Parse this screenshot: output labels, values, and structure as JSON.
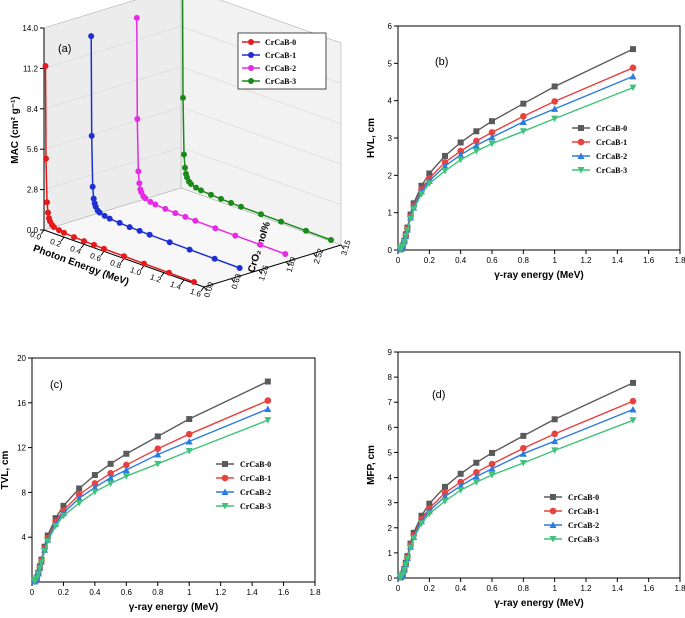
{
  "colors": {
    "CrCaB-0": "#e41a1c",
    "CrCaB-1": "#1f2fd1",
    "CrCaB-2": "#e62ae6",
    "CrCaB-3": "#1a8a1a",
    "b0": "#5a5a5a",
    "b1": "#e8423f",
    "b2": "#2c7be0",
    "b3": "#3fc27a"
  },
  "chart_data": [
    {
      "panel": "(a)",
      "type": "line",
      "title": "",
      "zlabel": "MAC (cm² g⁻¹)",
      "xlabel": "Photon Energy (MeV)",
      "ylabel": "CrO₂ mol%",
      "zticks": [
        "0.0",
        "2.8",
        "5.6",
        "8.4",
        "11.2",
        "14.0"
      ],
      "xticks": [
        "0.0",
        "0.2",
        "0.4",
        "0.6",
        "0.8",
        "1.0",
        "1.2",
        "1.4",
        "1.6"
      ],
      "yticks": [
        "0.00",
        "0.63",
        "1.26",
        "1.89",
        "2.52",
        "3.15"
      ],
      "zlim": [
        0,
        14
      ],
      "energy": [
        0.015,
        0.02,
        0.03,
        0.04,
        0.05,
        0.06,
        0.08,
        0.1,
        0.15,
        0.2,
        0.3,
        0.4,
        0.5,
        0.6,
        0.8,
        1.0,
        1.25,
        1.5
      ],
      "series": [
        {
          "name": "CrCaB-0",
          "mol": 0.0,
          "values": [
            11.4,
            5.0,
            2.0,
            1.3,
            0.95,
            0.75,
            0.55,
            0.45,
            0.36,
            0.3,
            0.25,
            0.22,
            0.2,
            0.18,
            0.16,
            0.14,
            0.12,
            0.1
          ]
        },
        {
          "name": "CrCaB-1",
          "mol": 1.05,
          "values": [
            12.5,
            5.6,
            2.1,
            1.3,
            1.0,
            0.8,
            0.58,
            0.48,
            0.38,
            0.31,
            0.26,
            0.22,
            0.2,
            0.18,
            0.16,
            0.14,
            0.12,
            0.1
          ]
        },
        {
          "name": "CrCaB-2",
          "mol": 2.1,
          "values": [
            12.8,
            5.8,
            2.2,
            1.4,
            1.0,
            0.82,
            0.6,
            0.5,
            0.38,
            0.32,
            0.26,
            0.22,
            0.2,
            0.18,
            0.16,
            0.14,
            0.12,
            0.1
          ]
        },
        {
          "name": "CrCaB-3",
          "mol": 3.15,
          "values": [
            14.0,
            6.3,
            2.4,
            1.5,
            1.1,
            0.88,
            0.64,
            0.52,
            0.4,
            0.33,
            0.27,
            0.23,
            0.2,
            0.18,
            0.16,
            0.14,
            0.12,
            0.1
          ]
        }
      ],
      "legend": [
        "CrCaB-0",
        "CrCaB-1",
        "CrCaB-2",
        "CrCaB-3"
      ]
    },
    {
      "panel": "(b)",
      "type": "line",
      "xlabel": "γ-ray energy (MeV)",
      "ylabel": "HVL, cm",
      "xlim": [
        0,
        1.8
      ],
      "ylim": [
        0,
        6
      ],
      "xticks": [
        0,
        0.2,
        0.4,
        0.6,
        0.8,
        1.0,
        1.2,
        1.4,
        1.6,
        1.8
      ],
      "yticks": [
        0,
        1,
        2,
        3,
        4,
        5,
        6
      ],
      "x": [
        0.015,
        0.02,
        0.03,
        0.04,
        0.05,
        0.06,
        0.08,
        0.1,
        0.15,
        0.2,
        0.3,
        0.4,
        0.5,
        0.6,
        0.8,
        1.0,
        1.5
      ],
      "series": [
        {
          "name": "CrCaB-0",
          "values": [
            0.02,
            0.04,
            0.12,
            0.25,
            0.42,
            0.6,
            0.95,
            1.25,
            1.72,
            2.05,
            2.52,
            2.88,
            3.18,
            3.45,
            3.92,
            4.38,
            5.38
          ]
        },
        {
          "name": "CrCaB-1",
          "values": [
            0.02,
            0.04,
            0.11,
            0.24,
            0.4,
            0.57,
            0.9,
            1.18,
            1.62,
            1.92,
            2.35,
            2.65,
            2.92,
            3.15,
            3.58,
            3.98,
            4.88
          ]
        },
        {
          "name": "CrCaB-2",
          "values": [
            0.02,
            0.04,
            0.11,
            0.23,
            0.38,
            0.55,
            0.87,
            1.14,
            1.57,
            1.85,
            2.25,
            2.55,
            2.8,
            3.02,
            3.43,
            3.78,
            4.65
          ]
        },
        {
          "name": "CrCaB-3",
          "values": [
            0.02,
            0.04,
            0.1,
            0.22,
            0.37,
            0.53,
            0.84,
            1.1,
            1.5,
            1.78,
            2.12,
            2.42,
            2.65,
            2.85,
            3.18,
            3.52,
            4.35
          ]
        }
      ]
    },
    {
      "panel": "(c)",
      "type": "line",
      "xlabel": "γ-ray energy (MeV)",
      "ylabel": "TVL, cm",
      "xlim": [
        0,
        1.8
      ],
      "ylim": [
        0,
        20
      ],
      "xticks": [
        0,
        0.2,
        0.4,
        0.6,
        0.8,
        1.0,
        1.2,
        1.4,
        1.6,
        1.8
      ],
      "yticks": [
        4,
        8,
        12,
        16,
        20
      ],
      "x": [
        0.015,
        0.02,
        0.03,
        0.04,
        0.05,
        0.06,
        0.08,
        0.1,
        0.15,
        0.2,
        0.3,
        0.4,
        0.5,
        0.6,
        0.8,
        1.0,
        1.5
      ],
      "series": [
        {
          "name": "CrCaB-0",
          "values": [
            0.06,
            0.14,
            0.4,
            0.82,
            1.4,
            2.0,
            3.15,
            4.15,
            5.7,
            6.8,
            8.35,
            9.55,
            10.55,
            11.45,
            13.0,
            14.55,
            17.9
          ]
        },
        {
          "name": "CrCaB-1",
          "values": [
            0.06,
            0.13,
            0.37,
            0.78,
            1.33,
            1.9,
            3.0,
            3.92,
            5.4,
            6.38,
            7.8,
            8.8,
            9.7,
            10.45,
            11.9,
            13.2,
            16.2
          ]
        },
        {
          "name": "CrCaB-2",
          "values": [
            0.06,
            0.13,
            0.36,
            0.76,
            1.27,
            1.83,
            2.88,
            3.78,
            5.2,
            6.15,
            7.48,
            8.45,
            9.3,
            10.0,
            11.38,
            12.55,
            15.45
          ]
        },
        {
          "name": "CrCaB-3",
          "values": [
            0.06,
            0.12,
            0.34,
            0.73,
            1.22,
            1.76,
            2.78,
            3.65,
            5.0,
            5.9,
            7.05,
            8.05,
            8.8,
            9.45,
            10.55,
            11.7,
            14.45
          ]
        }
      ]
    },
    {
      "panel": "(d)",
      "type": "line",
      "xlabel": "γ-ray energy (MeV)",
      "ylabel": "MFP, cm",
      "xlim": [
        0,
        1.8
      ],
      "ylim": [
        0,
        9
      ],
      "xticks": [
        0,
        0.2,
        0.4,
        0.6,
        0.8,
        1.0,
        1.2,
        1.4,
        1.6,
        1.8
      ],
      "yticks": [
        0,
        1,
        2,
        3,
        4,
        5,
        6,
        7,
        8,
        9
      ],
      "x": [
        0.015,
        0.02,
        0.03,
        0.04,
        0.05,
        0.06,
        0.08,
        0.1,
        0.15,
        0.2,
        0.3,
        0.4,
        0.5,
        0.6,
        0.8,
        1.0,
        1.5
      ],
      "series": [
        {
          "name": "CrCaB-0",
          "values": [
            0.03,
            0.06,
            0.17,
            0.36,
            0.61,
            0.87,
            1.37,
            1.8,
            2.48,
            2.96,
            3.63,
            4.15,
            4.59,
            4.98,
            5.66,
            6.32,
            7.77
          ]
        },
        {
          "name": "CrCaB-1",
          "values": [
            0.03,
            0.06,
            0.16,
            0.34,
            0.58,
            0.83,
            1.3,
            1.7,
            2.34,
            2.77,
            3.39,
            3.82,
            4.21,
            4.54,
            5.17,
            5.74,
            7.04
          ]
        },
        {
          "name": "CrCaB-2",
          "values": [
            0.03,
            0.06,
            0.16,
            0.33,
            0.55,
            0.79,
            1.25,
            1.64,
            2.26,
            2.67,
            3.25,
            3.67,
            4.04,
            4.35,
            4.95,
            5.45,
            6.71
          ]
        },
        {
          "name": "CrCaB-3",
          "values": [
            0.03,
            0.05,
            0.15,
            0.32,
            0.53,
            0.76,
            1.21,
            1.59,
            2.17,
            2.56,
            3.06,
            3.5,
            3.82,
            4.1,
            4.58,
            5.08,
            6.28
          ]
        }
      ]
    }
  ]
}
